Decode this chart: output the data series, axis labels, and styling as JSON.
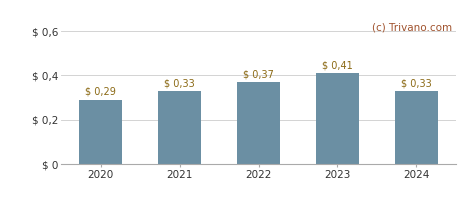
{
  "categories": [
    "2020",
    "2021",
    "2022",
    "2023",
    "2024"
  ],
  "values": [
    0.29,
    0.33,
    0.37,
    0.41,
    0.33
  ],
  "bar_color": "#6b8fa3",
  "bar_labels": [
    "$ 0,29",
    "$ 0,33",
    "$ 0,37",
    "$ 0,41",
    "$ 0,33"
  ],
  "ylim": [
    0,
    0.65
  ],
  "yticks": [
    0,
    0.2,
    0.4,
    0.6
  ],
  "ytick_labels": [
    "$ 0",
    "$ 0,2",
    "$ 0,4",
    "$ 0,6"
  ],
  "watermark": "(c) Trivano.com",
  "watermark_color": "#a0522d",
  "label_color": "#8B6914",
  "background_color": "#ffffff",
  "grid_color": "#cccccc",
  "bar_width": 0.55,
  "label_fontsize": 7.0,
  "tick_fontsize": 7.5,
  "watermark_fontsize": 7.5,
  "spine_color": "#aaaaaa"
}
